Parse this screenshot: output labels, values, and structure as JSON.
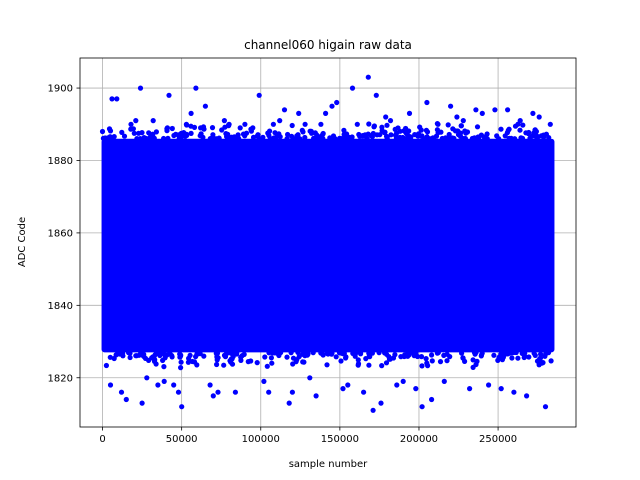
{
  "chart_data": {
    "type": "scatter",
    "title": "channel060 higain raw data",
    "xlabel": "sample number",
    "ylabel": "ADC Code",
    "xlim": [
      -14250,
      299250
    ],
    "ylim": [
      1806.4,
      1908.3
    ],
    "x_ticks": [
      0,
      50000,
      100000,
      150000,
      200000,
      250000
    ],
    "x_tick_labels": [
      "0",
      "50000",
      "100000",
      "150000",
      "200000",
      "250000"
    ],
    "y_ticks": [
      1820,
      1840,
      1860,
      1880,
      1900
    ],
    "y_tick_labels": [
      "1820",
      "1840",
      "1860",
      "1880",
      "1900"
    ],
    "grid": true,
    "marker_color": "#0000ff",
    "series": [
      {
        "dense_band": {
          "x_range": [
            0,
            285000
          ],
          "y_range": [
            1827,
            1886
          ]
        },
        "points": [
          [
            0,
            1888
          ],
          [
            5000,
            1818
          ],
          [
            6000,
            1897
          ],
          [
            9000,
            1897
          ],
          [
            12000,
            1816
          ],
          [
            15000,
            1814
          ],
          [
            18000,
            1890
          ],
          [
            21000,
            1891
          ],
          [
            24000,
            1900
          ],
          [
            25000,
            1813
          ],
          [
            28000,
            1820
          ],
          [
            32000,
            1891
          ],
          [
            35000,
            1818
          ],
          [
            39000,
            1819
          ],
          [
            41000,
            1889
          ],
          [
            42000,
            1898
          ],
          [
            45000,
            1818
          ],
          [
            48000,
            1816
          ],
          [
            50000,
            1812
          ],
          [
            53000,
            1890
          ],
          [
            56000,
            1893
          ],
          [
            59000,
            1900
          ],
          [
            62000,
            1889
          ],
          [
            65000,
            1895
          ],
          [
            68000,
            1818
          ],
          [
            70000,
            1815
          ],
          [
            73000,
            1816
          ],
          [
            77000,
            1891
          ],
          [
            80000,
            1890
          ],
          [
            84000,
            1816
          ],
          [
            87000,
            1889
          ],
          [
            90000,
            1890
          ],
          [
            95000,
            1889
          ],
          [
            99000,
            1898
          ],
          [
            102000,
            1819
          ],
          [
            105000,
            1816
          ],
          [
            108000,
            1890
          ],
          [
            112000,
            1891
          ],
          [
            115000,
            1894
          ],
          [
            118000,
            1813
          ],
          [
            120000,
            1816
          ],
          [
            124000,
            1893
          ],
          [
            128000,
            1890
          ],
          [
            131000,
            1820
          ],
          [
            135000,
            1815
          ],
          [
            138000,
            1890
          ],
          [
            141000,
            1893
          ],
          [
            145000,
            1895
          ],
          [
            148000,
            1896
          ],
          [
            152000,
            1817
          ],
          [
            155000,
            1818
          ],
          [
            158000,
            1900
          ],
          [
            161000,
            1890
          ],
          [
            165000,
            1816
          ],
          [
            168000,
            1903
          ],
          [
            171000,
            1811
          ],
          [
            173000,
            1898
          ],
          [
            176000,
            1813
          ],
          [
            179000,
            1892
          ],
          [
            182000,
            1891
          ],
          [
            186000,
            1818
          ],
          [
            190000,
            1819
          ],
          [
            194000,
            1893
          ],
          [
            198000,
            1817
          ],
          [
            202000,
            1812
          ],
          [
            205000,
            1896
          ],
          [
            208000,
            1814
          ],
          [
            212000,
            1890
          ],
          [
            216000,
            1819
          ],
          [
            220000,
            1895
          ],
          [
            224000,
            1892
          ],
          [
            228000,
            1891
          ],
          [
            232000,
            1817
          ],
          [
            236000,
            1894
          ],
          [
            240000,
            1893
          ],
          [
            244000,
            1818
          ],
          [
            248000,
            1894
          ],
          [
            252000,
            1817
          ],
          [
            256000,
            1894
          ],
          [
            260000,
            1816
          ],
          [
            264000,
            1891
          ],
          [
            268000,
            1815
          ],
          [
            272000,
            1893
          ],
          [
            276000,
            1892
          ],
          [
            280000,
            1812
          ],
          [
            283000,
            1890
          ]
        ]
      }
    ]
  }
}
